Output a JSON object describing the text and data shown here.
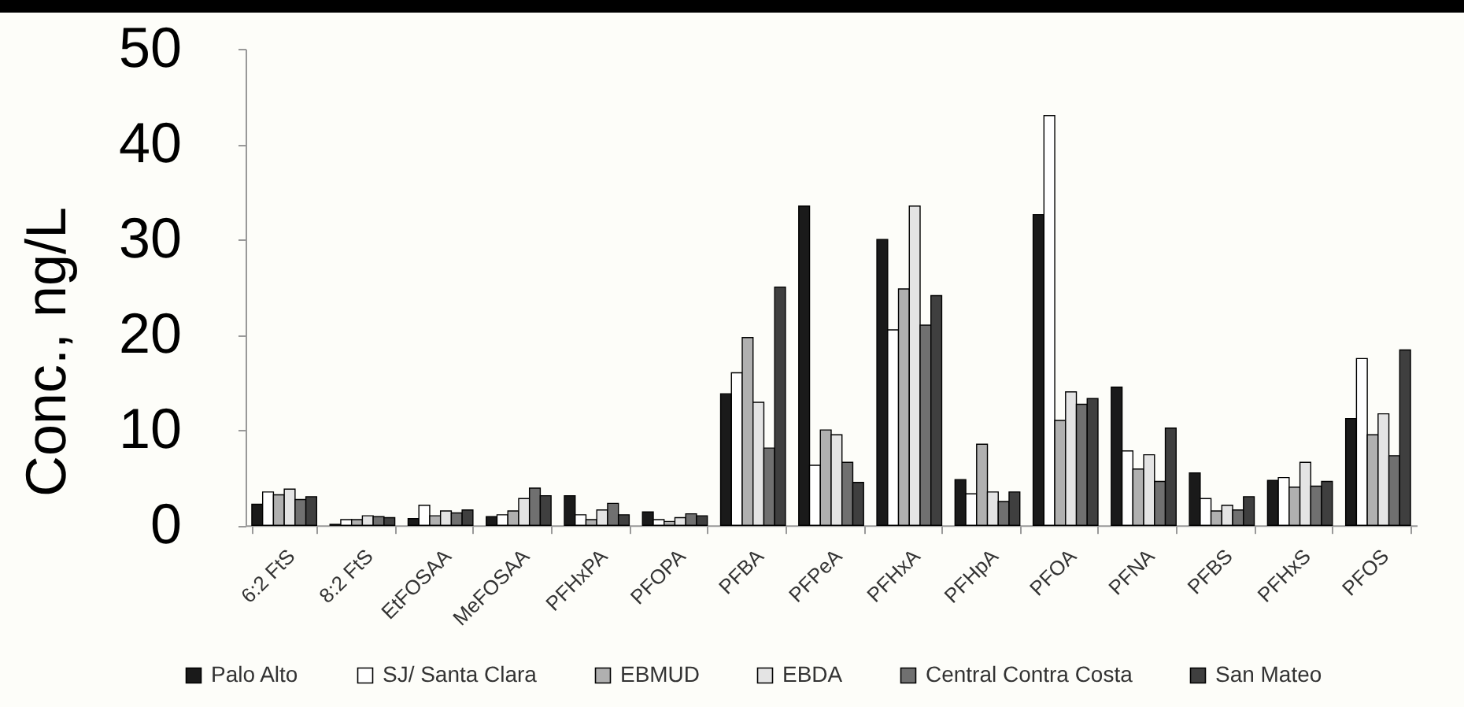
{
  "chart_data": {
    "type": "bar",
    "ylabel": "Conc., ng/L",
    "ylim": [
      0,
      50
    ],
    "yticks": [
      0,
      10,
      20,
      30,
      40,
      50
    ],
    "legend": "bottom",
    "categories": [
      "6:2 FtS",
      "8:2 FtS",
      "EtFOSAA",
      "MeFOSAA",
      "PFHxPA",
      "PFOPA",
      "PFBA",
      "PFPeA",
      "PFHxA",
      "PFHpA",
      "PFOA",
      "PFNA",
      "PFBS",
      "PFHxS",
      "PFOS"
    ],
    "series": [
      {
        "name": "Palo Alto",
        "color": "#1a1a1a",
        "values": [
          2.2,
          0.1,
          0.7,
          0.9,
          3.1,
          1.4,
          13.8,
          33.5,
          30.0,
          4.8,
          32.6,
          14.5,
          5.5,
          4.7,
          11.2
        ]
      },
      {
        "name": "SJ/ Santa Clara",
        "color": "#ffffff",
        "values": [
          3.5,
          0.6,
          2.1,
          1.1,
          1.1,
          0.6,
          16.0,
          6.3,
          20.5,
          3.3,
          43.0,
          7.8,
          2.8,
          5.0,
          17.5
        ]
      },
      {
        "name": "EBMUD",
        "color": "#b0b0b0",
        "values": [
          3.2,
          0.6,
          1.0,
          1.5,
          0.6,
          0.4,
          19.7,
          10.0,
          24.8,
          8.5,
          11.0,
          5.9,
          1.5,
          4.0,
          9.5
        ]
      },
      {
        "name": "EBDA",
        "color": "#e4e4e4",
        "values": [
          3.8,
          1.0,
          1.5,
          2.8,
          1.6,
          0.8,
          12.9,
          9.5,
          33.5,
          3.5,
          14.0,
          7.4,
          2.1,
          6.6,
          11.7
        ]
      },
      {
        "name": "Central Contra Costa",
        "color": "#707070",
        "values": [
          2.7,
          0.9,
          1.3,
          3.9,
          2.3,
          1.2,
          8.1,
          6.6,
          21.0,
          2.5,
          12.7,
          4.6,
          1.6,
          4.1,
          7.3
        ]
      },
      {
        "name": "San Mateo",
        "color": "#3f3f3f",
        "values": [
          3.0,
          0.8,
          1.6,
          3.1,
          1.1,
          1.0,
          25.0,
          4.5,
          24.1,
          3.5,
          13.3,
          10.2,
          3.0,
          4.6,
          18.4
        ]
      }
    ]
  }
}
